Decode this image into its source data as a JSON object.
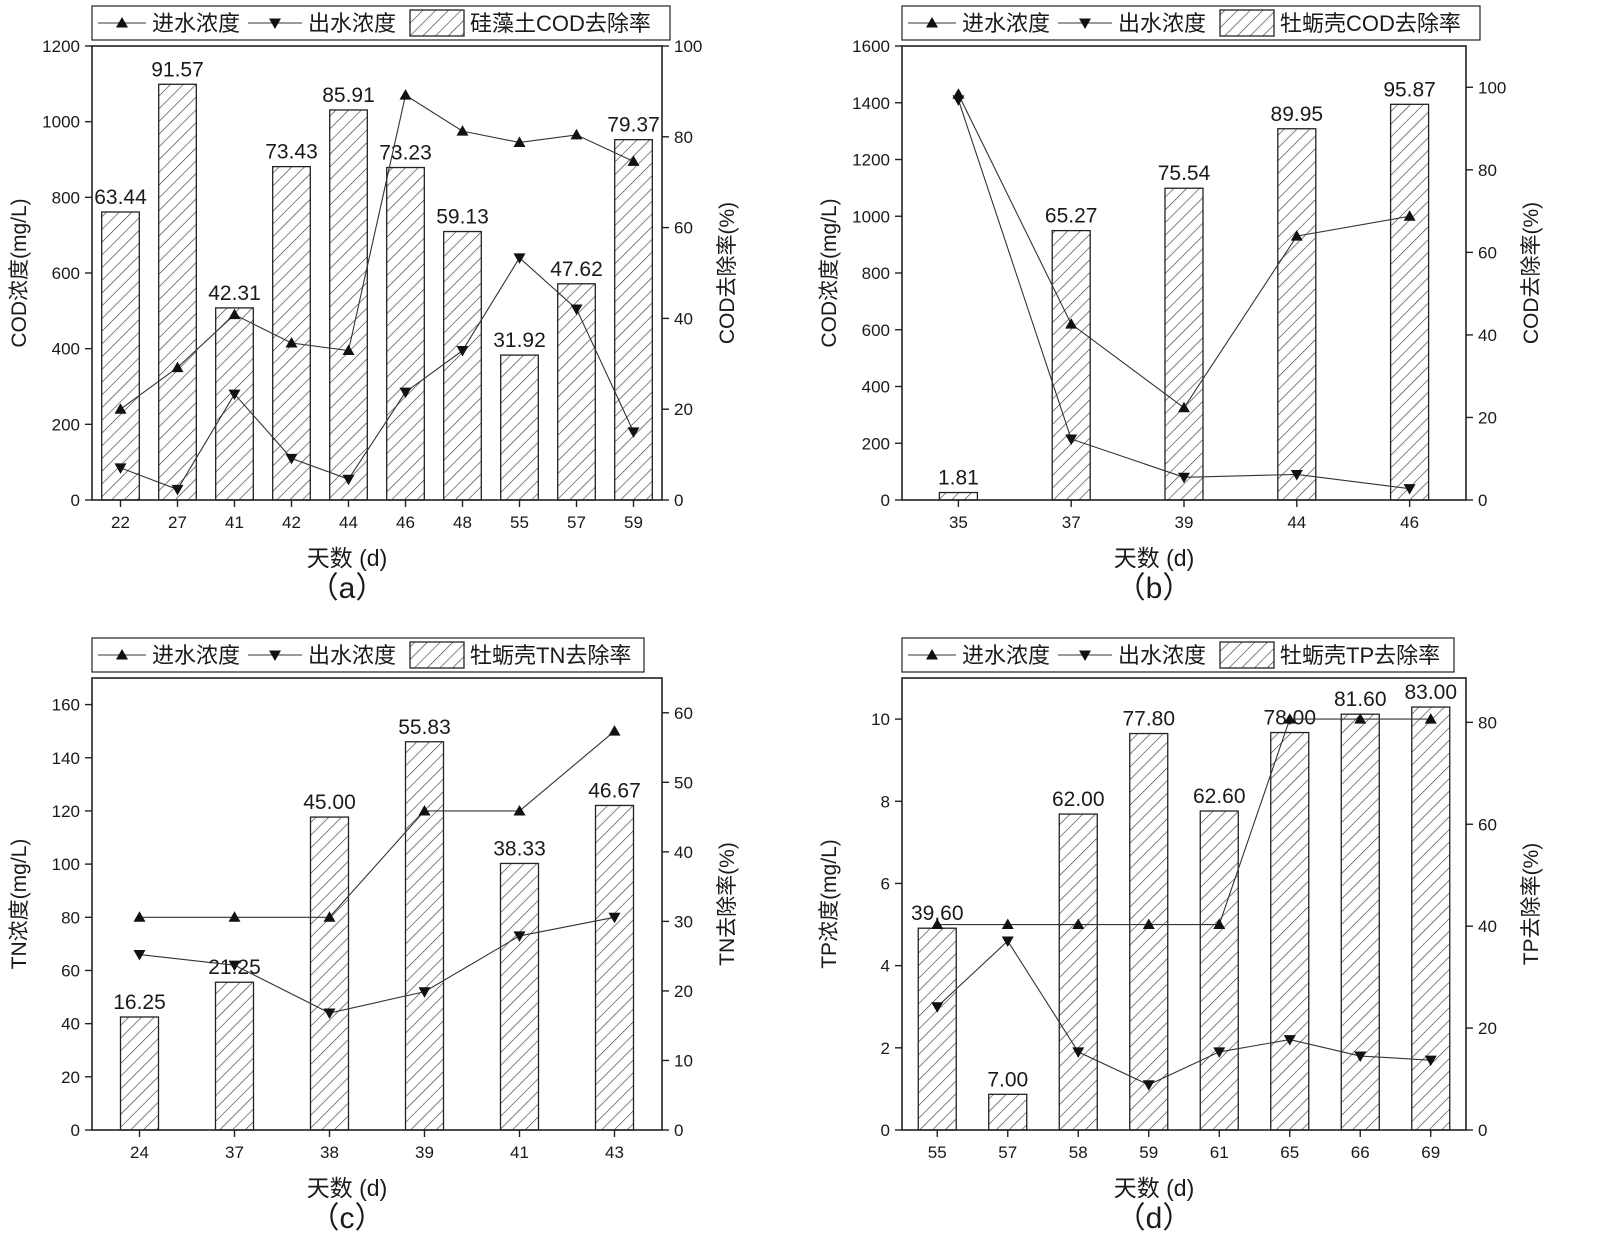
{
  "chart_data": [
    {
      "type": "bar+line",
      "panel_label": "（a）",
      "categories": [
        "22",
        "27",
        "41",
        "42",
        "44",
        "46",
        "48",
        "55",
        "57",
        "59"
      ],
      "bars": {
        "name": "硅藻土COD去除率",
        "values": [
          63.44,
          91.57,
          42.31,
          73.43,
          85.91,
          73.23,
          59.13,
          31.92,
          47.62,
          79.37
        ],
        "labels": [
          "63.44",
          "91.57",
          "42.31",
          "73.43",
          "85.91",
          "73.23",
          "59.13",
          "31.92",
          "47.62",
          "79.37"
        ]
      },
      "series": [
        {
          "name": "进水浓度",
          "marker": "triangle-up",
          "values": [
            240,
            350,
            490,
            415,
            395,
            1070,
            975,
            945,
            965,
            895
          ]
        },
        {
          "name": "出水浓度",
          "marker": "triangle-down",
          "values": [
            85,
            28,
            280,
            110,
            55,
            285,
            395,
            640,
            505,
            180
          ]
        }
      ],
      "xlabel": "天数 (d)",
      "ylabel": "COD浓度(mg/L)",
      "y2label": "COD去除率(%)",
      "ylim": [
        0,
        1200
      ],
      "yticks": [
        "0",
        "200",
        "400",
        "600",
        "800",
        "1000",
        "1200"
      ],
      "y2lim": [
        0,
        100
      ],
      "y2ticks": [
        "0",
        "20",
        "40",
        "60",
        "80",
        "100"
      ]
    },
    {
      "type": "bar+line",
      "panel_label": "（b）",
      "categories": [
        "35",
        "37",
        "39",
        "44",
        "46"
      ],
      "bars": {
        "name": "牡蛎壳COD去除率",
        "values": [
          1.81,
          65.27,
          75.54,
          89.95,
          95.87
        ],
        "labels": [
          "1.81",
          "65.27",
          "75.54",
          "89.95",
          "95.87"
        ]
      },
      "series": [
        {
          "name": "进水浓度",
          "marker": "triangle-up",
          "values": [
            1430,
            620,
            325,
            930,
            1000
          ]
        },
        {
          "name": "出水浓度",
          "marker": "triangle-down",
          "values": [
            1410,
            215,
            80,
            90,
            40
          ]
        }
      ],
      "xlabel": "天数 (d)",
      "ylabel": "COD浓度(mg/L)",
      "y2label": "COD去除率(%)",
      "ylim": [
        0,
        1600
      ],
      "yticks": [
        "0",
        "200",
        "400",
        "600",
        "800",
        "1000",
        "1200",
        "1400",
        "1600"
      ],
      "y2lim": [
        0,
        110
      ],
      "y2ticks": [
        "0",
        "20",
        "40",
        "60",
        "80",
        "100"
      ]
    },
    {
      "type": "bar+line",
      "panel_label": "（c）",
      "categories": [
        "24",
        "37",
        "38",
        "39",
        "41",
        "43"
      ],
      "bars": {
        "name": "牡蛎壳TN去除率",
        "values": [
          16.25,
          21.25,
          45.0,
          55.83,
          38.33,
          46.67
        ],
        "labels": [
          "16.25",
          "21.25",
          "45.00",
          "55.83",
          "38.33",
          "46.67"
        ]
      },
      "series": [
        {
          "name": "进水浓度",
          "marker": "triangle-up",
          "values": [
            80,
            80,
            80,
            120,
            120,
            150
          ]
        },
        {
          "name": "出水浓度",
          "marker": "triangle-down",
          "values": [
            66,
            62,
            44,
            52,
            73,
            80
          ]
        }
      ],
      "xlabel": "天数 (d)",
      "ylabel": "TN浓度(mg/L)",
      "y2label": "TN去除率(%)",
      "ylim": [
        0,
        170
      ],
      "yticks": [
        "0",
        "20",
        "40",
        "60",
        "80",
        "100",
        "120",
        "140",
        "160"
      ],
      "y2lim": [
        0,
        65
      ],
      "y2ticks": [
        "0",
        "10",
        "20",
        "30",
        "40",
        "50",
        "60"
      ]
    },
    {
      "type": "bar+line",
      "panel_label": "（d）",
      "categories": [
        "55",
        "57",
        "58",
        "59",
        "61",
        "65",
        "66",
        "69"
      ],
      "bars": {
        "name": "牡蛎壳TP去除率",
        "values": [
          39.6,
          7.0,
          62.0,
          77.8,
          62.6,
          78.0,
          81.6,
          83.0
        ],
        "labels": [
          "39.60",
          "7.00",
          "62.00",
          "77.80",
          "62.60",
          "78.00",
          "81.60",
          "83.00"
        ]
      },
      "series": [
        {
          "name": "进水浓度",
          "marker": "triangle-up",
          "values": [
            5.0,
            5.0,
            5.0,
            5.0,
            5.0,
            10.0,
            10.0,
            10.0
          ]
        },
        {
          "name": "出水浓度",
          "marker": "triangle-down",
          "values": [
            3.0,
            4.6,
            1.9,
            1.1,
            1.9,
            2.2,
            1.8,
            1.7
          ]
        }
      ],
      "xlabel": "天数 (d)",
      "ylabel": "TP浓度(mg/L)",
      "y2label": "TP去除率(%)",
      "ylim": [
        0,
        11
      ],
      "yticks": [
        "0",
        "2",
        "4",
        "6",
        "8",
        "10"
      ],
      "y2lim": [
        0,
        88.7
      ],
      "y2ticks": [
        "0",
        "20",
        "40",
        "60",
        "80"
      ]
    }
  ]
}
